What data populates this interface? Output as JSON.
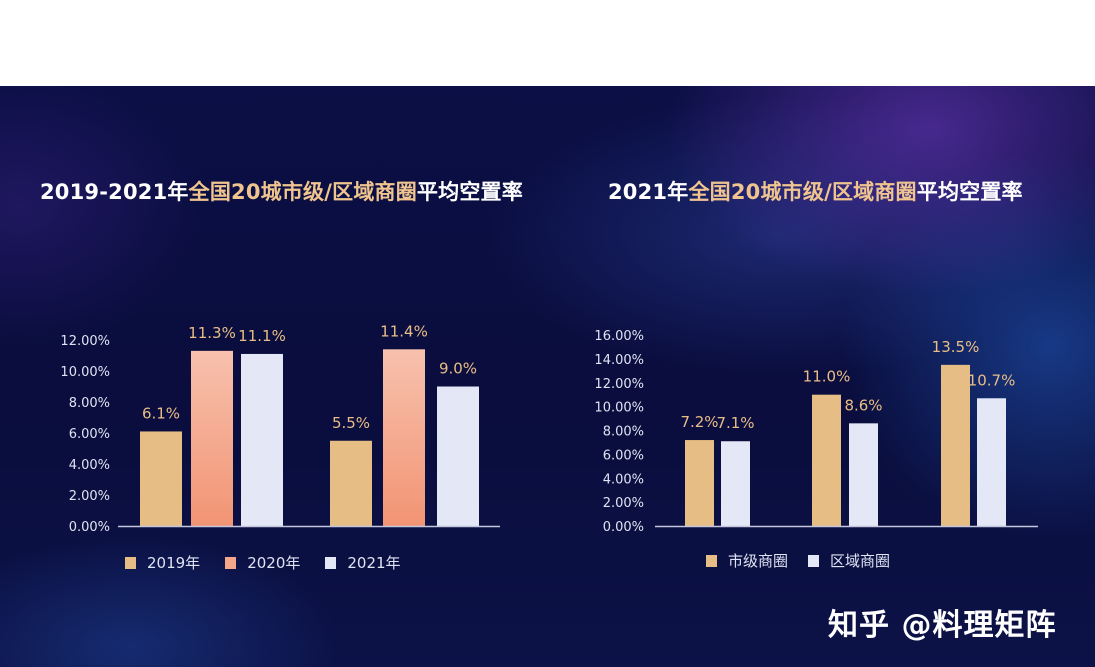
{
  "titles": {
    "left": {
      "prefix": "2019-2021年",
      "highlight": "全国20城市级/区域商圈",
      "suffix": "平均空置率"
    },
    "right": {
      "prefix": "2021年",
      "highlight": "全国20城市级/区域商圈",
      "suffix": "平均空置率"
    }
  },
  "watermark": "知乎 @料理矩阵",
  "colors": {
    "gold": "#e6bd84",
    "salmon": "#f5a58a",
    "white_bar": "#e4e7f6",
    "label_gold": "#e9bd86",
    "title_highlight": "#efc48f",
    "axis": "#c3c7dc"
  },
  "chart_data": [
    {
      "type": "bar",
      "title": "2019-2021年全国20城市级/区域商圈平均空置率",
      "categories": [
        "",
        ""
      ],
      "series": [
        {
          "name": "2019年",
          "values": [
            6.1,
            5.5
          ],
          "labels": [
            "6.1%",
            "5.5%"
          ]
        },
        {
          "name": "2020年",
          "values": [
            11.3,
            11.4
          ],
          "labels": [
            "11.3%",
            "11.4%"
          ]
        },
        {
          "name": "2021年",
          "values": [
            11.1,
            9.0
          ],
          "labels": [
            "11.1%",
            "9.0%"
          ]
        }
      ],
      "ylim": [
        0,
        12
      ],
      "yticks": [
        "0.00%",
        "2.00%",
        "4.00%",
        "6.00%",
        "8.00%",
        "10.00%",
        "12.00%"
      ],
      "legend": "bottom-left",
      "grid": false
    },
    {
      "type": "bar",
      "title": "2021年全国20城市级/区域商圈平均空置率",
      "categories": [
        "",
        "",
        ""
      ],
      "series": [
        {
          "name": "市级商圈",
          "values": [
            7.2,
            11.0,
            13.5
          ],
          "labels": [
            "7.2%",
            "11.0%",
            "13.5%"
          ]
        },
        {
          "name": "区域商圈",
          "values": [
            7.1,
            8.6,
            10.7
          ],
          "labels": [
            "7.1%",
            "8.6%",
            "10.7%"
          ]
        }
      ],
      "ylim": [
        0,
        16
      ],
      "yticks": [
        "0.00%",
        "2.00%",
        "4.00%",
        "6.00%",
        "8.00%",
        "10.00%",
        "12.00%",
        "14.00%",
        "16.00%"
      ],
      "legend": "bottom-left",
      "grid": false
    }
  ]
}
